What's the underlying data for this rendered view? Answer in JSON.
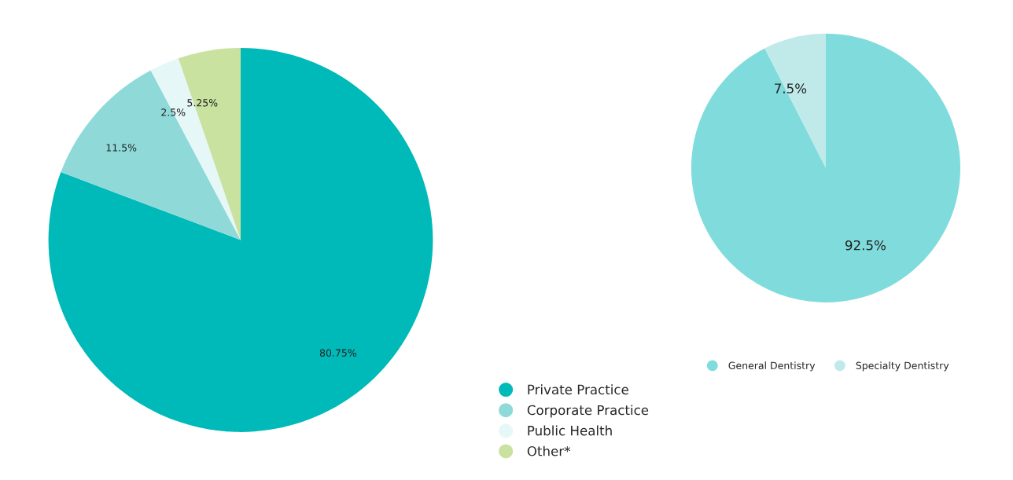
{
  "chart_data": [
    {
      "type": "pie",
      "categories": [
        "Private Practice",
        "Corporate Practice",
        "Public Health",
        "Other*"
      ],
      "values": [
        80.75,
        11.5,
        2.5,
        5.25
      ],
      "colors": [
        "#00b9b9",
        "#8fd9d9",
        "#e6f7f7",
        "#c9e2a0"
      ],
      "value_labels": [
        "80.75%",
        "11.5%",
        "2.5%",
        "5.25%"
      ],
      "legend": "bottom right"
    },
    {
      "type": "pie",
      "categories": [
        "General Dentistry",
        "Specialty Dentistry"
      ],
      "values": [
        92.5,
        7.5
      ],
      "colors": [
        "#80dcdc",
        "#c0eaea"
      ],
      "value_labels": [
        "92.5%",
        "7.5%"
      ],
      "legend": "bottom"
    }
  ]
}
